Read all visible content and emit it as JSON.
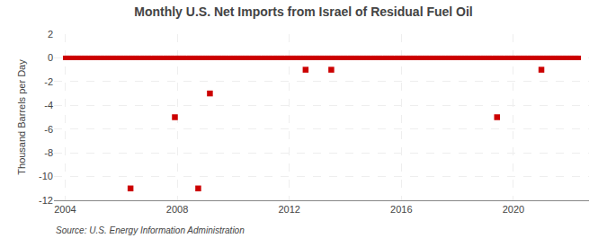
{
  "chart_data": {
    "type": "scatter",
    "title": "Monthly U.S. Net Imports from Israel of Residual Fuel Oil",
    "ylabel": "Thousand Barrels per Day",
    "annotations": [
      "Source: U.S. Energy Information Administration"
    ],
    "xlim": [
      2003.6,
      2022.7
    ],
    "xticks": [
      2004,
      2008,
      2012,
      2016,
      2020
    ],
    "ylim": [
      -12,
      2
    ],
    "yticks": [
      2,
      0,
      -2,
      -4,
      -6,
      -8,
      -10,
      -12
    ],
    "grid": true,
    "series": [
      {
        "color": "#cc0000",
        "marker": "square",
        "x": [
          2004.0,
          2004.083,
          2004.167,
          2004.25,
          2004.333,
          2004.417,
          2004.5,
          2004.583,
          2004.667,
          2004.75,
          2004.833,
          2004.917,
          2005.0,
          2005.083,
          2005.167,
          2005.25,
          2005.333,
          2005.417,
          2005.5,
          2005.583,
          2005.667,
          2005.75,
          2005.833,
          2005.917,
          2006.0,
          2006.083,
          2006.167,
          2006.25,
          2006.333,
          2006.417,
          2006.5,
          2006.583,
          2006.667,
          2006.75,
          2006.833,
          2006.917,
          2007.0,
          2007.083,
          2007.167,
          2007.25,
          2007.333,
          2007.417,
          2007.5,
          2007.583,
          2007.667,
          2007.75,
          2007.833,
          2007.917,
          2008.0,
          2008.083,
          2008.167,
          2008.25,
          2008.333,
          2008.417,
          2008.5,
          2008.583,
          2008.667,
          2008.75,
          2008.833,
          2008.917,
          2009.0,
          2009.083,
          2009.167,
          2009.25,
          2009.333,
          2009.417,
          2009.5,
          2009.583,
          2009.667,
          2009.75,
          2009.833,
          2009.917,
          2010.0,
          2010.083,
          2010.167,
          2010.25,
          2010.333,
          2010.417,
          2010.5,
          2010.583,
          2010.667,
          2010.75,
          2010.833,
          2010.917,
          2011.0,
          2011.083,
          2011.167,
          2011.25,
          2011.333,
          2011.417,
          2011.5,
          2011.583,
          2011.667,
          2011.75,
          2011.833,
          2011.917,
          2012.0,
          2012.083,
          2012.167,
          2012.25,
          2012.333,
          2012.417,
          2012.5,
          2012.583,
          2012.667,
          2012.75,
          2012.833,
          2012.917,
          2013.0,
          2013.083,
          2013.167,
          2013.25,
          2013.333,
          2013.417,
          2013.5,
          2013.583,
          2013.667,
          2013.75,
          2013.833,
          2013.917,
          2014.0,
          2014.083,
          2014.167,
          2014.25,
          2014.333,
          2014.417,
          2014.5,
          2014.583,
          2014.667,
          2014.75,
          2014.833,
          2014.917,
          2015.0,
          2015.083,
          2015.167,
          2015.25,
          2015.333,
          2015.417,
          2015.5,
          2015.583,
          2015.667,
          2015.75,
          2015.833,
          2015.917,
          2016.0,
          2016.083,
          2016.167,
          2016.25,
          2016.333,
          2016.417,
          2016.5,
          2016.583,
          2016.667,
          2016.75,
          2016.833,
          2016.917,
          2017.0,
          2017.083,
          2017.167,
          2017.25,
          2017.333,
          2017.417,
          2017.5,
          2017.583,
          2017.667,
          2017.75,
          2017.833,
          2017.917,
          2018.0,
          2018.083,
          2018.167,
          2018.25,
          2018.333,
          2018.417,
          2018.5,
          2018.583,
          2018.667,
          2018.75,
          2018.833,
          2018.917,
          2019.0,
          2019.083,
          2019.167,
          2019.25,
          2019.333,
          2019.417,
          2019.5,
          2019.583,
          2019.667,
          2019.75,
          2019.833,
          2019.917,
          2020.0,
          2020.083,
          2020.167,
          2020.25,
          2020.333,
          2020.417,
          2020.5,
          2020.583,
          2020.667,
          2020.75,
          2020.833,
          2020.917,
          2021.0,
          2021.083,
          2021.167,
          2021.25,
          2021.333,
          2021.417,
          2021.5,
          2021.583,
          2021.667,
          2021.75,
          2021.833,
          2021.917,
          2022.0,
          2022.083,
          2022.167,
          2022.25,
          2022.333
        ],
        "values": [
          0,
          0,
          0,
          0,
          0,
          0,
          0,
          0,
          0,
          0,
          0,
          0,
          0,
          0,
          0,
          0,
          0,
          0,
          0,
          0,
          0,
          0,
          0,
          0,
          0,
          0,
          0,
          0,
          0,
          0,
          0,
          0,
          0,
          0,
          0,
          0,
          0,
          0,
          0,
          0,
          0,
          0,
          0,
          0,
          0,
          0,
          0,
          0,
          0,
          0,
          0,
          0,
          0,
          0,
          0,
          0,
          0,
          0,
          0,
          0,
          0,
          0,
          0,
          0,
          0,
          0,
          0,
          0,
          0,
          0,
          0,
          0,
          0,
          0,
          0,
          0,
          0,
          0,
          0,
          0,
          0,
          0,
          0,
          0,
          0,
          0,
          0,
          0,
          0,
          0,
          0,
          0,
          0,
          0,
          0,
          0,
          0,
          0,
          0,
          0,
          0,
          0,
          0,
          0,
          0,
          0,
          0,
          0,
          0,
          0,
          0,
          0,
          0,
          0,
          0,
          0,
          0,
          0,
          0,
          0,
          0,
          0,
          0,
          0,
          0,
          0,
          0,
          0,
          0,
          0,
          0,
          0,
          0,
          0,
          0,
          0,
          0,
          0,
          0,
          0,
          0,
          0,
          0,
          0,
          0,
          0,
          0,
          0,
          0,
          0,
          0,
          0,
          0,
          0,
          0,
          0,
          0,
          0,
          0,
          0,
          0,
          0,
          0,
          0,
          0,
          0,
          0,
          0,
          0,
          0,
          0,
          0,
          0,
          0,
          0,
          0,
          0,
          0,
          0,
          0,
          0,
          0,
          0,
          0,
          0,
          0,
          0,
          0,
          0,
          0,
          0,
          0,
          0,
          0,
          0,
          0,
          0,
          0,
          0,
          0,
          0,
          0,
          0,
          0,
          0,
          0,
          0,
          0,
          0,
          0,
          0,
          0,
          0,
          0,
          0,
          0,
          0,
          0,
          0,
          0,
          0
        ]
      },
      {
        "color": "#cc0000",
        "marker": "square",
        "x": [
          2006.333,
          2007.917,
          2008.75,
          2009.167,
          2012.583,
          2013.5,
          2019.417,
          2021.0
        ],
        "values": [
          -11,
          -5,
          -11,
          -3,
          -1,
          -1,
          -5,
          -1
        ]
      }
    ]
  }
}
